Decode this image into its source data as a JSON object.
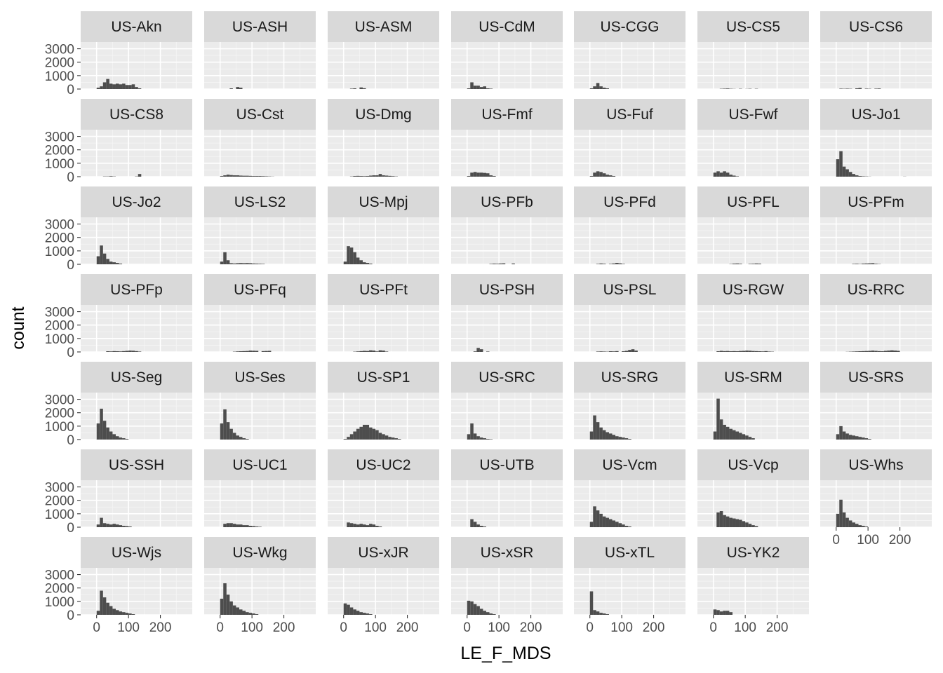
{
  "chart_data": {
    "type": "bar",
    "subtype": "faceted-histogram",
    "xlabel": "LE_F_MDS",
    "ylabel": "count",
    "xlim": [
      -50,
      300
    ],
    "ylim": [
      0,
      3500
    ],
    "x_ticks": [
      0,
      100,
      200
    ],
    "x_tick_labels": [
      "0",
      "100",
      "200"
    ],
    "y_ticks": [
      0,
      1000,
      2000,
      3000
    ],
    "y_tick_labels": [
      "0",
      "1000",
      "2000",
      "3000"
    ],
    "bin_start": -10,
    "bin_width": 10,
    "colors": {
      "bar": "#4d4d4d",
      "panel_bg": "#ebebeb",
      "grid_major": "#ffffff",
      "strip_bg": "#d9d9d9",
      "axis_text": "#4d4d4d"
    },
    "grid": true,
    "facets": [
      {
        "label": "US-Akn",
        "values": [
          0,
          100,
          200,
          500,
          750,
          400,
          350,
          400,
          350,
          400,
          300,
          300,
          350,
          150,
          50
        ]
      },
      {
        "label": "US-ASH",
        "values": [
          0,
          0,
          0,
          0,
          50,
          0,
          150,
          100
        ]
      },
      {
        "label": "US-ASM",
        "values": [
          0,
          0,
          0,
          30,
          50,
          0,
          120,
          60
        ]
      },
      {
        "label": "US-CdM",
        "values": [
          0,
          50,
          500,
          250,
          250,
          150,
          200,
          50,
          30
        ]
      },
      {
        "label": "US-CGG",
        "values": [
          0,
          50,
          200,
          450,
          200,
          100,
          50
        ]
      },
      {
        "label": "US-CS5",
        "values": [
          0,
          0,
          0,
          20,
          30,
          40,
          20,
          10,
          0,
          20,
          0,
          10,
          20,
          0,
          20
        ]
      },
      {
        "label": "US-CS6",
        "values": [
          0,
          0,
          30,
          20,
          30,
          20,
          0,
          50,
          80,
          0,
          30,
          20,
          0,
          30,
          40
        ]
      },
      {
        "label": "US-CS8",
        "values": [
          0,
          0,
          0,
          20,
          20,
          40,
          20,
          0,
          0,
          0,
          0,
          0,
          0,
          20,
          200,
          0
        ]
      },
      {
        "label": "US-Cst",
        "values": [
          0,
          50,
          100,
          150,
          120,
          100,
          100,
          80,
          70,
          70,
          60,
          50,
          50,
          50,
          40,
          30,
          20,
          10
        ]
      },
      {
        "label": "US-Dmg",
        "values": [
          0,
          0,
          0,
          20,
          50,
          60,
          50,
          40,
          50,
          80,
          100,
          100,
          200,
          100,
          80,
          60,
          40,
          20
        ]
      },
      {
        "label": "US-Fmf",
        "values": [
          0,
          50,
          300,
          350,
          300,
          300,
          280,
          250,
          100,
          50
        ]
      },
      {
        "label": "US-Fuf",
        "values": [
          0,
          50,
          300,
          400,
          350,
          250,
          150,
          100,
          50
        ]
      },
      {
        "label": "US-Fwf",
        "values": [
          0,
          300,
          400,
          300,
          400,
          300,
          150,
          80,
          30
        ]
      },
      {
        "label": "US-Jo1",
        "values": [
          0,
          1300,
          1900,
          750,
          550,
          350,
          200,
          100,
          50,
          30,
          20,
          10,
          0,
          0,
          0,
          0,
          0,
          0,
          0,
          0,
          0,
          0,
          10
        ]
      },
      {
        "label": "US-Jo2",
        "values": [
          0,
          600,
          1400,
          800,
          400,
          200,
          150,
          100,
          50
        ]
      },
      {
        "label": "US-LS2",
        "values": [
          0,
          200,
          900,
          300,
          80,
          60,
          80,
          90,
          80,
          90,
          80,
          60,
          50,
          40,
          30
        ]
      },
      {
        "label": "US-Mpj",
        "values": [
          0,
          200,
          1350,
          1250,
          900,
          500,
          300,
          150,
          100,
          50
        ]
      },
      {
        "label": "US-PFb",
        "values": [
          0,
          0,
          0,
          0,
          0,
          0,
          0,
          0,
          30,
          50,
          40,
          60,
          70,
          0,
          0,
          60
        ]
      },
      {
        "label": "US-PFd",
        "values": [
          0,
          0,
          0,
          30,
          60,
          40,
          0,
          30,
          60,
          100,
          70,
          30
        ]
      },
      {
        "label": "US-PFL",
        "values": [
          0,
          0,
          0,
          0,
          0,
          0,
          20,
          50,
          60,
          40,
          0,
          0,
          30,
          40,
          60,
          50
        ]
      },
      {
        "label": "US-PFm",
        "values": [
          0,
          0,
          0,
          0,
          0,
          0,
          30,
          40,
          20,
          50,
          60,
          70,
          80,
          40,
          20
        ]
      },
      {
        "label": "US-PFp",
        "values": [
          0,
          0,
          0,
          0,
          50,
          40,
          60,
          50,
          40,
          60,
          80,
          100,
          90,
          60,
          30
        ]
      },
      {
        "label": "US-PFq",
        "values": [
          0,
          0,
          0,
          0,
          0,
          20,
          40,
          50,
          60,
          70,
          100,
          90,
          80,
          0,
          60,
          70,
          80
        ]
      },
      {
        "label": "US-PFt",
        "values": [
          0,
          0,
          0,
          0,
          20,
          40,
          60,
          80,
          70,
          120,
          100,
          40,
          120,
          100,
          30
        ]
      },
      {
        "label": "US-PSH",
        "values": [
          0,
          0,
          0,
          40,
          300,
          200,
          0,
          30
        ]
      },
      {
        "label": "US-PSL",
        "values": [
          0,
          0,
          0,
          30,
          40,
          30,
          20,
          50,
          40,
          60,
          0,
          50,
          80,
          150,
          200,
          100
        ]
      },
      {
        "label": "US-RGW",
        "values": [
          0,
          0,
          50,
          80,
          60,
          70,
          50,
          60,
          50,
          70,
          80,
          100,
          90,
          70,
          60,
          50,
          40,
          60,
          30,
          20
        ]
      },
      {
        "label": "US-RRC",
        "values": [
          0,
          0,
          0,
          0,
          10,
          20,
          30,
          40,
          50,
          60,
          70,
          80,
          100,
          80,
          60,
          50,
          80,
          100,
          120,
          100,
          80
        ]
      },
      {
        "label": "US-Seg",
        "values": [
          0,
          1200,
          2300,
          1400,
          900,
          600,
          400,
          250,
          150,
          100,
          50
        ]
      },
      {
        "label": "US-Ses",
        "values": [
          0,
          1200,
          2250,
          1300,
          800,
          500,
          300,
          200,
          100,
          50
        ]
      },
      {
        "label": "US-SP1",
        "values": [
          0,
          50,
          200,
          400,
          600,
          800,
          950,
          1100,
          1100,
          900,
          800,
          700,
          500,
          400,
          300,
          200,
          150,
          100,
          50
        ]
      },
      {
        "label": "US-SRC",
        "values": [
          0,
          400,
          1200,
          450,
          250,
          150,
          100,
          50,
          30
        ]
      },
      {
        "label": "US-SRG",
        "values": [
          0,
          600,
          1800,
          1300,
          900,
          700,
          550,
          450,
          350,
          250,
          200,
          150,
          100,
          50
        ]
      },
      {
        "label": "US-SRM",
        "values": [
          0,
          600,
          3050,
          1500,
          1100,
          950,
          800,
          700,
          600,
          500,
          400,
          300,
          200,
          100
        ]
      },
      {
        "label": "US-SRS",
        "values": [
          0,
          400,
          1000,
          600,
          450,
          350,
          300,
          250,
          200,
          150,
          100,
          50
        ]
      },
      {
        "label": "US-SSH",
        "values": [
          0,
          200,
          700,
          300,
          250,
          200,
          250,
          200,
          150,
          100,
          80,
          50
        ]
      },
      {
        "label": "US-UC1",
        "values": [
          0,
          0,
          250,
          300,
          300,
          250,
          200,
          200,
          150,
          150,
          100,
          80,
          50,
          30
        ]
      },
      {
        "label": "US-UC2",
        "values": [
          0,
          0,
          350,
          300,
          250,
          200,
          250,
          200,
          150,
          250,
          200,
          100,
          50
        ]
      },
      {
        "label": "US-UTB",
        "values": [
          0,
          0,
          600,
          400,
          200,
          100,
          50
        ]
      },
      {
        "label": "US-Vcm",
        "values": [
          0,
          400,
          1550,
          1250,
          1000,
          800,
          700,
          600,
          500,
          400,
          300,
          200,
          100,
          50
        ]
      },
      {
        "label": "US-Vcp",
        "values": [
          0,
          0,
          1100,
          1200,
          900,
          800,
          700,
          650,
          600,
          550,
          450,
          350,
          250,
          150,
          80
        ]
      },
      {
        "label": "US-Whs",
        "values": [
          0,
          1000,
          2050,
          1100,
          700,
          500,
          350,
          250,
          150,
          100,
          50
        ]
      },
      {
        "label": "US-Wjs",
        "values": [
          0,
          300,
          1800,
          1300,
          900,
          650,
          450,
          350,
          250,
          200,
          150,
          100,
          50
        ]
      },
      {
        "label": "US-Wkg",
        "values": [
          0,
          1200,
          2350,
          1500,
          1000,
          700,
          550,
          400,
          300,
          200,
          150,
          100,
          50
        ]
      },
      {
        "label": "US-xJR",
        "values": [
          0,
          850,
          750,
          550,
          400,
          300,
          200,
          150,
          100,
          50
        ]
      },
      {
        "label": "US-xSR",
        "values": [
          0,
          1050,
          1000,
          800,
          650,
          450,
          300,
          200,
          100,
          50
        ]
      },
      {
        "label": "US-xTL",
        "values": [
          0,
          1750,
          350,
          250,
          150,
          100,
          50
        ]
      },
      {
        "label": "US-YK2",
        "values": [
          0,
          400,
          350,
          250,
          300,
          300,
          200
        ]
      }
    ]
  }
}
